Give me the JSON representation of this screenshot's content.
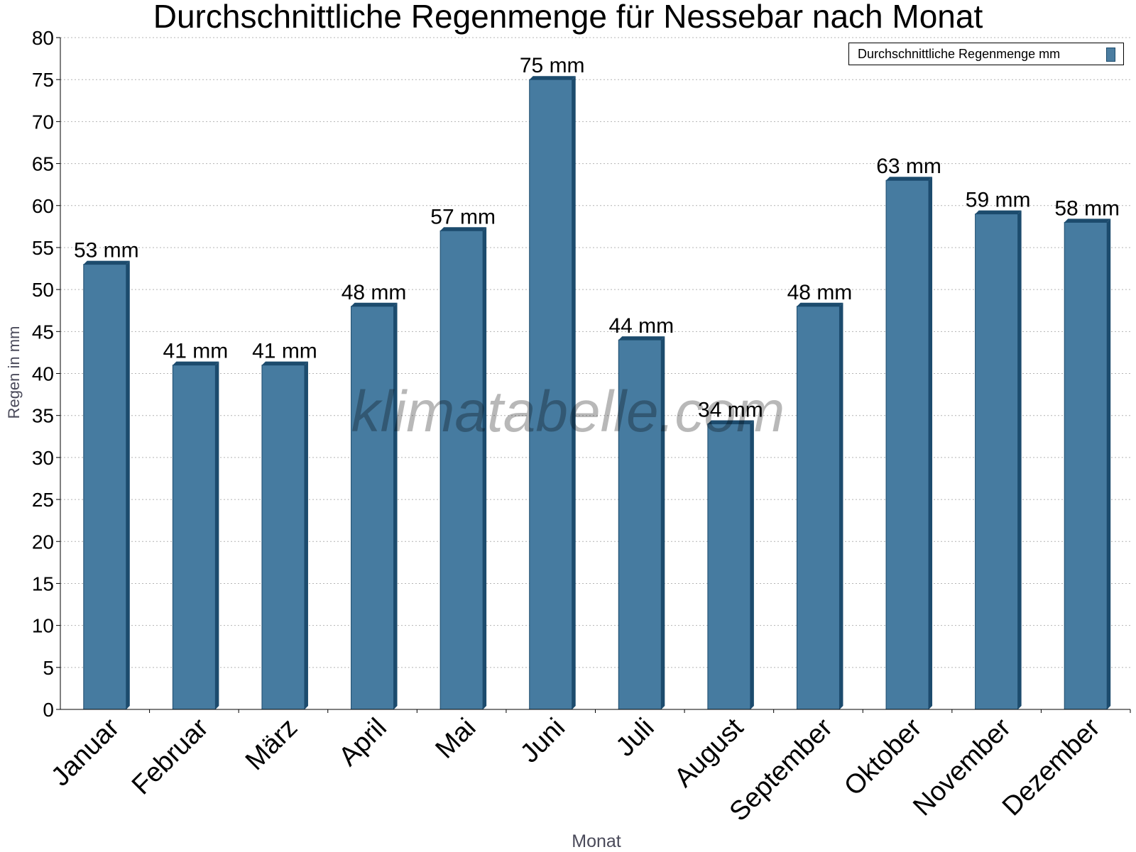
{
  "chart_data": {
    "type": "bar",
    "title": "Durchschnittliche Regenmenge für Nessebar nach Monat",
    "xlabel": "Monat",
    "ylabel": "Regen in mm",
    "categories": [
      "Januar",
      "Februar",
      "März",
      "April",
      "Mai",
      "Juni",
      "Juli",
      "August",
      "September",
      "Oktober",
      "November",
      "Dezember"
    ],
    "series": [
      {
        "name": "Durchschnittliche Regenmenge mm",
        "values": [
          53,
          41,
          41,
          48,
          57,
          75,
          44,
          34,
          48,
          63,
          59,
          58
        ],
        "labels": [
          "53 mm",
          "41 mm",
          "41 mm",
          "48 mm",
          "57 mm",
          "75 mm",
          "44 mm",
          "34 mm",
          "48 mm",
          "63 mm",
          "59 mm",
          "58 mm"
        ]
      }
    ],
    "ylim": [
      0,
      80
    ],
    "yticks": [
      0,
      5,
      10,
      15,
      20,
      25,
      30,
      35,
      40,
      45,
      50,
      55,
      60,
      65,
      70,
      75,
      80
    ],
    "grid": true,
    "legend_position": "top-right",
    "colors": {
      "bar": "#467ba0",
      "bar_dark": "#1c4b6d"
    }
  },
  "watermark": "klimatabelle.com"
}
